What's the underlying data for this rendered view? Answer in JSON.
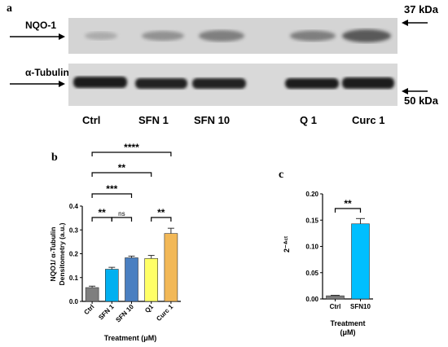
{
  "panel_a": {
    "letter": "a",
    "protein_top": "NQO-1",
    "protein_bottom": "α-Tubulin",
    "marker_top": "37 kDa",
    "marker_bottom": "50 kDa",
    "lanes": [
      "Ctrl",
      "SFN 1",
      "SFN 10",
      "Q 1",
      "Curc 1"
    ]
  },
  "panel_b": {
    "letter": "b",
    "ylabel_line1": "NQO1/ α-Tubulin",
    "ylabel_line2": "Densitometry (a.u.)",
    "xlabel": "Treatment (μM)"
  },
  "panel_c": {
    "letter": "c",
    "ylabel": "2⁻ᐞᶜᵗ",
    "xlabel_line1": "Treatment",
    "xlabel_line2": "(μM)"
  },
  "chart_data": [
    {
      "type": "bar",
      "categories": [
        "Ctrl",
        "SFN 1",
        "SFN 10",
        "Q1",
        "Curc 1"
      ],
      "values": [
        0.058,
        0.135,
        0.183,
        0.18,
        0.285
      ],
      "errors": [
        0.006,
        0.008,
        0.007,
        0.013,
        0.022
      ],
      "ylim": [
        0,
        0.4
      ],
      "yticks": [
        "0.0",
        "0.1",
        "0.2",
        "0.3",
        "0.4"
      ],
      "colors": [
        "#7f7f7f",
        "#00b0f0",
        "#4a7fc1",
        "#ffff66",
        "#f2b857"
      ],
      "grid": false,
      "significance": [
        {
          "from": 0,
          "to": 1,
          "label": "**"
        },
        {
          "from": 1,
          "to": 2,
          "label": "ns"
        },
        {
          "from": 3,
          "to": 4,
          "label": "**"
        },
        {
          "from": 0,
          "to": 2,
          "label": "***"
        },
        {
          "from": 0,
          "to": 3,
          "label": "**"
        },
        {
          "from": 0,
          "to": 4,
          "label": "****"
        }
      ]
    },
    {
      "type": "bar",
      "categories": [
        "Ctrl",
        "SFN10"
      ],
      "values": [
        0.006,
        0.143
      ],
      "errors": [
        0.001,
        0.01
      ],
      "ylim": [
        0,
        0.2
      ],
      "yticks": [
        "0.00",
        "0.05",
        "0.10",
        "0.15",
        "0.20"
      ],
      "colors": [
        "#7f7f7f",
        "#00bfff"
      ],
      "grid": false,
      "significance": [
        {
          "from": 0,
          "to": 1,
          "label": "**"
        }
      ]
    }
  ]
}
